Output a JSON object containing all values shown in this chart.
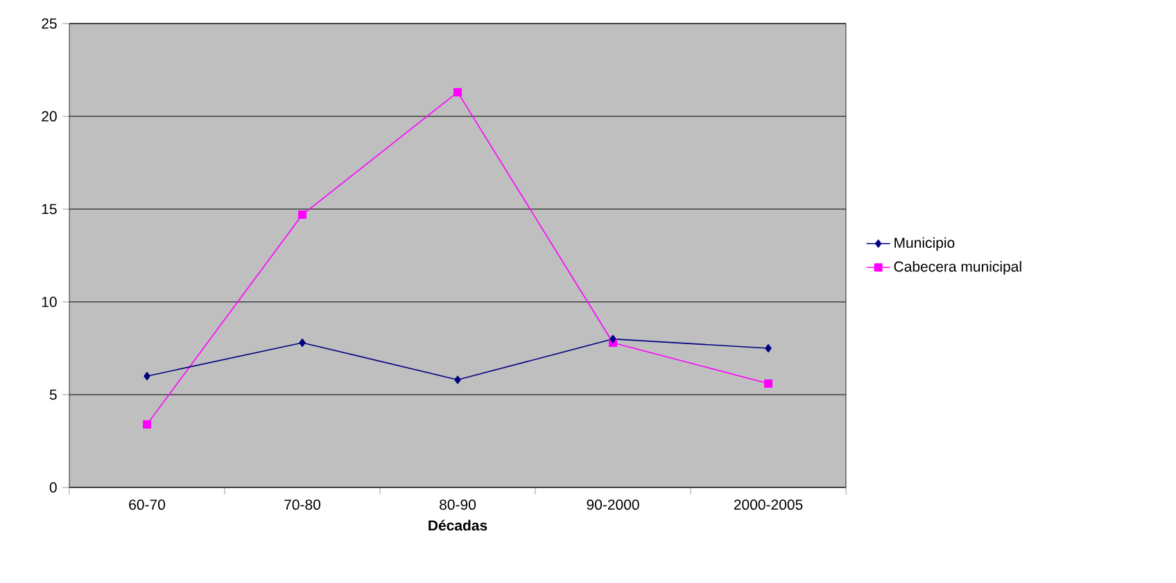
{
  "chart_data": {
    "type": "line",
    "xlabel": "Décadas",
    "categories": [
      "60-70",
      "70-80",
      "80-90",
      "90-2000",
      "2000-2005"
    ],
    "series": [
      {
        "name": "Municipio",
        "color": "#000080",
        "marker": "diamond",
        "values": [
          6.0,
          7.8,
          5.8,
          8.0,
          7.5
        ]
      },
      {
        "name": "Cabecera municipal",
        "color": "#ff00ff",
        "marker": "square",
        "values": [
          3.4,
          14.7,
          21.3,
          7.8,
          5.6
        ]
      }
    ],
    "ylim": [
      0,
      25
    ],
    "yticks": [
      0,
      5,
      10,
      15,
      20,
      25
    ],
    "grid": "y",
    "legend": "right"
  }
}
